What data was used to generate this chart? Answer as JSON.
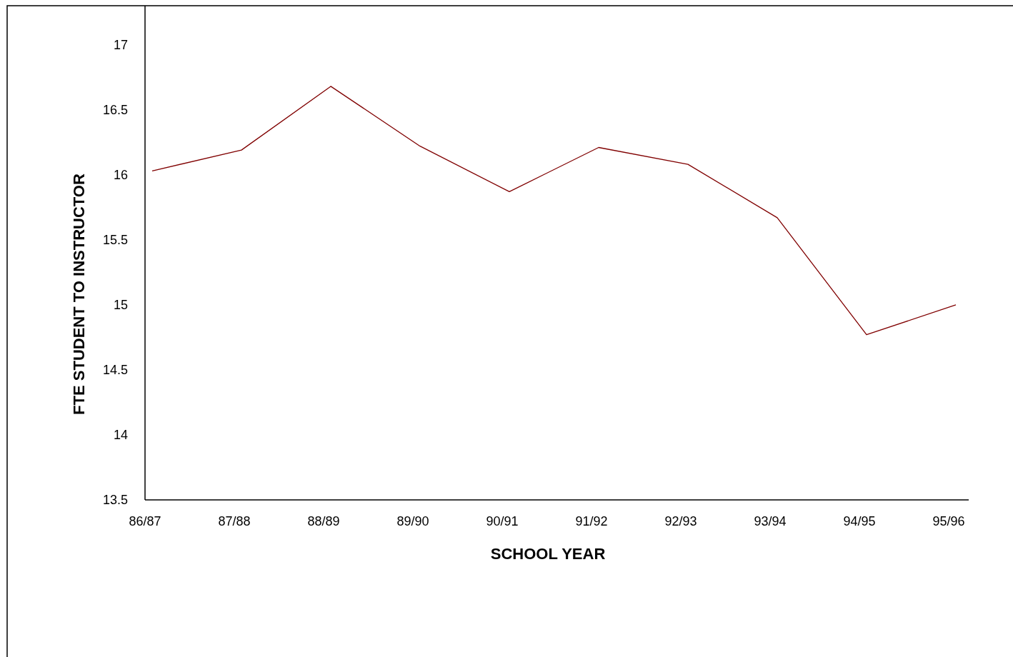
{
  "chart_data": {
    "type": "line",
    "xlabel": "SCHOOL YEAR",
    "ylabel": "FTE STUDENT TO INSTRUCTOR",
    "categories": [
      "86/87",
      "87/88",
      "88/89",
      "89/90",
      "90/91",
      "91/92",
      "92/93",
      "93/94",
      "94/95",
      "95/96"
    ],
    "series": [
      {
        "color": "#800000",
        "values": [
          16.03,
          16.19,
          16.68,
          16.22,
          15.87,
          16.21,
          16.08,
          15.67,
          14.77,
          15.0
        ]
      }
    ],
    "ylim": [
      13.5,
      17.3
    ],
    "yticks": [
      13.5,
      14,
      14.5,
      15,
      15.5,
      16,
      16.5,
      17
    ],
    "grid": false,
    "marker": "none",
    "line_style": "solid"
  }
}
